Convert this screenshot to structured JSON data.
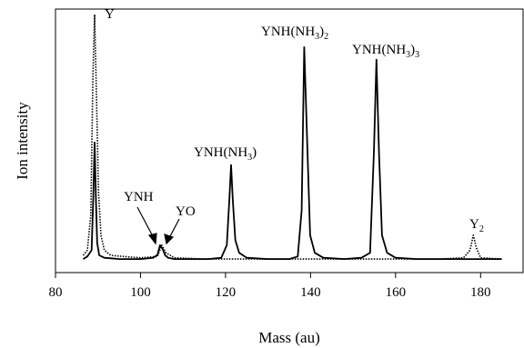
{
  "chart_data": {
    "type": "line",
    "xlabel": "Mass (au)",
    "ylabel": "Ion intensity",
    "xlim": [
      80,
      190
    ],
    "ylim": [
      0,
      100
    ],
    "xticks": [
      80,
      100,
      120,
      140,
      160,
      180
    ],
    "xtick_labels": [
      "80",
      "100",
      "120",
      "140",
      "160",
      "180"
    ],
    "grid": false,
    "series": [
      {
        "style": "solid",
        "color": "#000000",
        "x": [
          86.5,
          87.5,
          88.5,
          88.9,
          89.2,
          89.5,
          89.8,
          90.3,
          91.5,
          95,
          100,
          103,
          104,
          104.6,
          105.2,
          105.8,
          106.5,
          108,
          112,
          116,
          119,
          120.3,
          120.9,
          121.3,
          121.7,
          122.3,
          123.2,
          125,
          130,
          135,
          137,
          137.9,
          138.5,
          139.2,
          139.9,
          141,
          143,
          148,
          152,
          154,
          154.9,
          155.5,
          156.1,
          156.8,
          158,
          160,
          165,
          170,
          175,
          178,
          180,
          185
        ],
        "y": [
          2.5,
          3.5,
          6,
          28,
          49,
          27,
          9,
          4,
          3,
          2.5,
          2.5,
          3,
          4.2,
          8,
          6.5,
          4,
          3,
          2.5,
          2.5,
          2.5,
          3,
          8,
          26,
          40,
          26,
          10,
          5,
          3,
          2.5,
          2.5,
          3.5,
          22,
          87,
          50,
          12,
          5,
          3,
          2.5,
          3,
          5,
          45,
          82,
          45,
          12,
          5,
          3,
          2.5,
          2.5,
          2.5,
          2.5,
          2.5,
          2.5
        ]
      },
      {
        "style": "dotted",
        "color": "#000000",
        "x": [
          86.5,
          87.5,
          88.3,
          88.8,
          89.2,
          89.6,
          90.1,
          90.7,
          91.5,
          93,
          96,
          100,
          104,
          105,
          106,
          108,
          115,
          125,
          140,
          155,
          170,
          176,
          177.5,
          178.3,
          179,
          180,
          185
        ],
        "y": [
          4,
          6,
          20,
          75,
          100,
          70,
          30,
          12,
          6,
          4,
          3.5,
          3,
          3.5,
          8,
          5,
          3,
          2.5,
          2.5,
          2.5,
          2.5,
          2.5,
          3,
          6,
          12,
          7,
          3,
          2.5
        ]
      }
    ],
    "annotations": [
      {
        "text": "Y",
        "x": 89.2
      },
      {
        "text": "YNH",
        "x": 104.6
      },
      {
        "text": "YO",
        "x": 105.8
      },
      {
        "text": "YNH(NH3)",
        "x": 121.3
      },
      {
        "text": "YNH(NH3)2",
        "x": 138.5
      },
      {
        "text": "YNH(NH3)3",
        "x": 155.5
      },
      {
        "text": "Y2",
        "x": 178.3
      }
    ]
  }
}
